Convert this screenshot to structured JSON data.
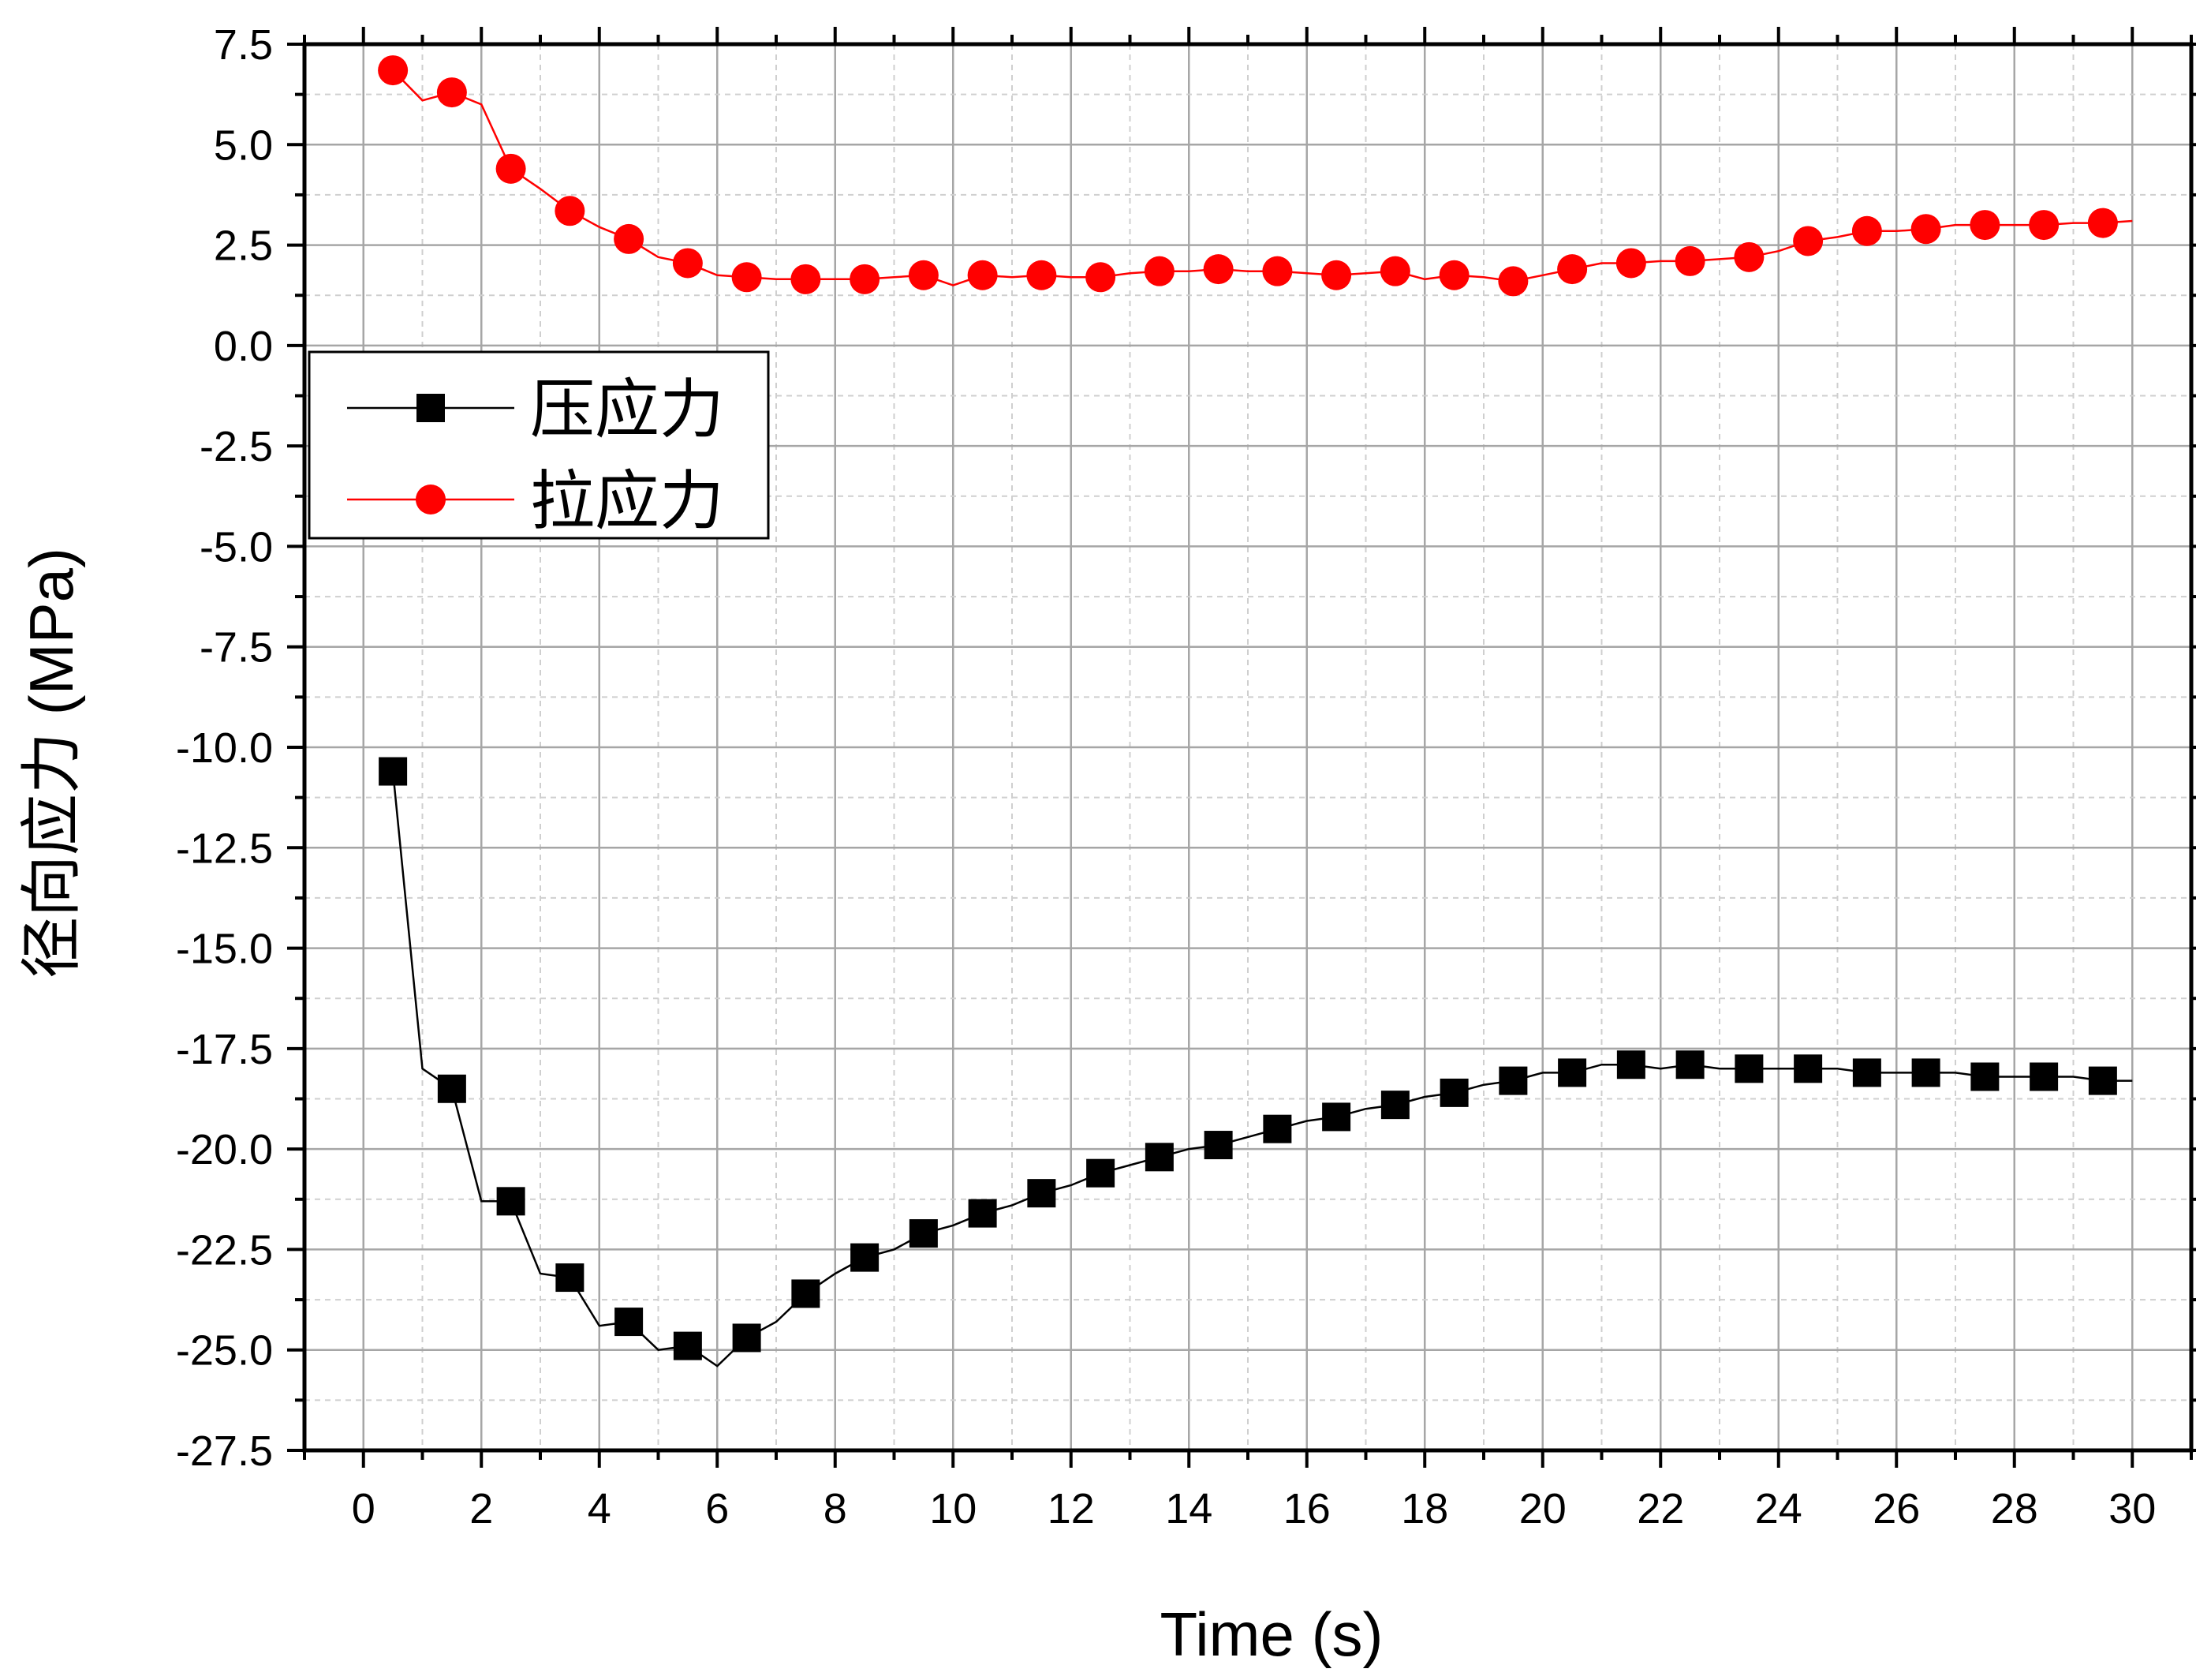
{
  "chart_data": {
    "type": "line",
    "title": "",
    "xlabel": "Time (s)",
    "ylabel": "径向应力 (MPa)",
    "xlim": [
      -1,
      31
    ],
    "ylim": [
      -27.5,
      7.5
    ],
    "x_ticks": [
      0,
      2,
      4,
      6,
      8,
      10,
      12,
      14,
      16,
      18,
      20,
      22,
      24,
      26,
      28,
      30
    ],
    "x_tick_labels": [
      "0",
      "2",
      "4",
      "6",
      "8",
      "10",
      "12",
      "14",
      "16",
      "18",
      "20",
      "22",
      "24",
      "26",
      "28",
      "30"
    ],
    "y_ticks": [
      7.5,
      5.0,
      2.5,
      0.0,
      -2.5,
      -5.0,
      -7.5,
      -10.0,
      -12.5,
      -15.0,
      -17.5,
      -20.0,
      -22.5,
      -25.0,
      -27.5
    ],
    "y_tick_labels": [
      "7.5",
      "5.0",
      "2.5",
      "0.0",
      "-2.5",
      "-5.0",
      "-7.5",
      "-10.0",
      "-12.5",
      "-15.0",
      "-17.5",
      "-20.0",
      "-22.5",
      "-25.0",
      "-27.5"
    ],
    "grid": true,
    "legend_position": "upper-left",
    "series": [
      {
        "name": "压应力",
        "color": "#000000",
        "marker": "square",
        "x": [
          0.5,
          1,
          1.5,
          2,
          2.5,
          3,
          3.5,
          4,
          4.5,
          5,
          5.5,
          6,
          6.5,
          7,
          7.5,
          8,
          8.5,
          9,
          9.5,
          10,
          10.5,
          11,
          11.5,
          12,
          12.5,
          13,
          13.5,
          14,
          14.5,
          15,
          15.5,
          16,
          16.5,
          17,
          17.5,
          18,
          18.5,
          19,
          19.5,
          20,
          20.5,
          21,
          21.5,
          22,
          22.5,
          23,
          23.5,
          24,
          24.5,
          25,
          25.5,
          26,
          26.5,
          27,
          27.5,
          28,
          28.5,
          29,
          29.5,
          30
        ],
        "y": [
          -10.6,
          -18.0,
          -18.5,
          -21.3,
          -21.3,
          -23.1,
          -23.2,
          -24.4,
          -24.3,
          -25.0,
          -24.9,
          -25.4,
          -24.7,
          -24.3,
          -23.6,
          -23.1,
          -22.7,
          -22.5,
          -22.1,
          -21.9,
          -21.6,
          -21.4,
          -21.1,
          -20.9,
          -20.6,
          -20.4,
          -20.2,
          -20.0,
          -19.9,
          -19.7,
          -19.5,
          -19.3,
          -19.2,
          -19.0,
          -18.9,
          -18.7,
          -18.6,
          -18.4,
          -18.3,
          -18.1,
          -18.1,
          -17.9,
          -17.9,
          -18.0,
          -17.9,
          -18.0,
          -18.0,
          -18.0,
          -18.0,
          -18.0,
          -18.1,
          -18.1,
          -18.1,
          -18.1,
          -18.2,
          -18.2,
          -18.2,
          -18.2,
          -18.3,
          -18.3
        ],
        "marker_x": [
          0.5,
          1.5,
          2.5,
          3.5,
          4.5,
          5.5,
          6.5,
          7.5,
          8.5,
          9.5,
          10.5,
          11.5,
          12.5,
          13.5,
          14.5,
          15.5,
          16.5,
          17.5,
          18.5,
          19.5,
          20.5,
          21.5,
          22.5,
          23.5,
          24.5,
          25.5,
          26.5,
          27.5,
          28.5,
          29.5
        ],
        "marker_y": [
          -10.6,
          -18.5,
          -21.3,
          -23.2,
          -24.3,
          -24.9,
          -24.7,
          -23.6,
          -22.7,
          -22.1,
          -21.6,
          -21.1,
          -20.6,
          -20.2,
          -19.9,
          -19.5,
          -19.2,
          -18.9,
          -18.6,
          -18.3,
          -18.1,
          -17.9,
          -17.9,
          -18.0,
          -18.0,
          -18.1,
          -18.1,
          -18.2,
          -18.2,
          -18.3
        ]
      },
      {
        "name": "拉应力",
        "color": "#ff0000",
        "marker": "circle",
        "x": [
          0.5,
          1,
          1.5,
          2,
          2.5,
          3,
          3.5,
          4,
          4.5,
          5,
          5.5,
          6,
          6.5,
          7,
          7.5,
          8,
          8.5,
          9,
          9.5,
          10,
          10.5,
          11,
          11.5,
          12,
          12.5,
          13,
          13.5,
          14,
          14.5,
          15,
          15.5,
          16,
          16.5,
          17,
          17.5,
          18,
          18.5,
          19,
          19.5,
          20,
          20.5,
          21,
          21.5,
          22,
          22.5,
          23,
          23.5,
          24,
          24.5,
          25,
          25.5,
          26,
          26.5,
          27,
          27.5,
          28,
          28.5,
          29,
          29.5,
          30
        ],
        "y": [
          6.85,
          6.1,
          6.3,
          6.0,
          4.4,
          3.9,
          3.35,
          2.95,
          2.65,
          2.2,
          2.05,
          1.75,
          1.7,
          1.65,
          1.65,
          1.65,
          1.65,
          1.7,
          1.75,
          1.5,
          1.75,
          1.7,
          1.75,
          1.7,
          1.7,
          1.8,
          1.85,
          1.85,
          1.9,
          1.85,
          1.85,
          1.8,
          1.75,
          1.8,
          1.85,
          1.65,
          1.75,
          1.7,
          1.6,
          1.75,
          1.9,
          2.05,
          2.05,
          2.1,
          2.1,
          2.15,
          2.2,
          2.35,
          2.6,
          2.7,
          2.85,
          2.85,
          2.9,
          3.0,
          3.0,
          3.0,
          3.0,
          3.05,
          3.05,
          3.1
        ],
        "marker_x": [
          0.5,
          1.5,
          2.5,
          3.5,
          4.5,
          5.5,
          6.5,
          7.5,
          8.5,
          9.5,
          10.5,
          11.5,
          12.5,
          13.5,
          14.5,
          15.5,
          16.5,
          17.5,
          18.5,
          19.5,
          20.5,
          21.5,
          22.5,
          23.5,
          24.5,
          25.5,
          26.5,
          27.5,
          28.5,
          29.5
        ],
        "marker_y": [
          6.85,
          6.3,
          4.4,
          3.35,
          2.65,
          2.05,
          1.7,
          1.65,
          1.65,
          1.75,
          1.75,
          1.75,
          1.7,
          1.85,
          1.9,
          1.85,
          1.75,
          1.85,
          1.75,
          1.6,
          1.9,
          2.05,
          2.1,
          2.2,
          2.6,
          2.85,
          2.9,
          3.0,
          3.0,
          3.05
        ]
      }
    ]
  }
}
